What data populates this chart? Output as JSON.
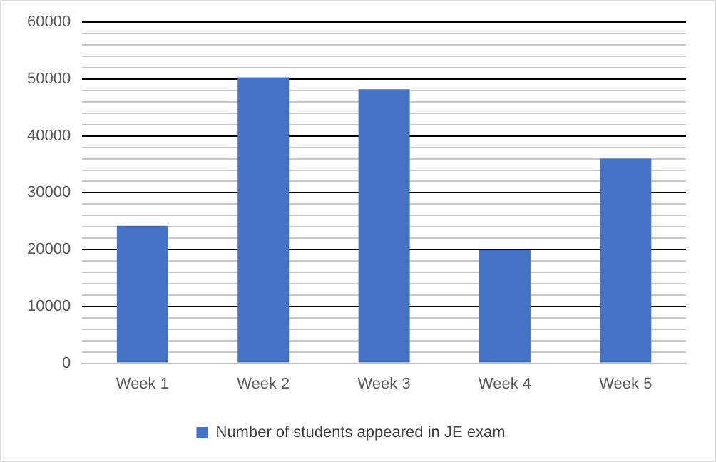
{
  "chart_data": {
    "type": "bar",
    "categories": [
      "Week 1",
      "Week 2",
      "Week 3",
      "Week 4",
      "Week 5"
    ],
    "series": [
      {
        "name": "Number of students appeared in JE exam",
        "color": "#4472c4",
        "values": [
          24200,
          50300,
          48200,
          20000,
          36000
        ]
      }
    ],
    "ylim": [
      0,
      60000
    ],
    "yticks": [
      0,
      {
        "value": 2000,
        "label": null
      },
      {
        "value": 4000,
        "label": null
      },
      {
        "value": 6000,
        "label": null
      },
      {
        "value": 8000,
        "label": null
      },
      10000,
      {
        "value": 12000,
        "label": null
      },
      {
        "value": 14000,
        "label": null
      },
      {
        "value": 16000,
        "label": null
      },
      {
        "value": 18000,
        "label": null
      },
      20000,
      {
        "value": 22000,
        "label": null
      },
      {
        "value": 24000,
        "label": null
      },
      {
        "value": 26000,
        "label": null
      },
      {
        "value": 28000,
        "label": null
      },
      30000,
      {
        "value": 32000,
        "label": null
      },
      {
        "value": 34000,
        "label": null
      },
      {
        "value": 36000,
        "label": null
      },
      {
        "value": 38000,
        "label": null
      },
      40000,
      {
        "value": 42000,
        "label": null
      },
      {
        "value": 44000,
        "label": null
      },
      {
        "value": 46000,
        "label": null
      },
      {
        "value": 48000,
        "label": null
      },
      50000,
      {
        "value": 52000,
        "label": null
      },
      {
        "value": 54000,
        "label": null
      },
      {
        "value": 56000,
        "label": null
      },
      {
        "value": 58000,
        "label": null
      },
      60000
    ],
    "grid": "y",
    "legend": "bottom"
  }
}
